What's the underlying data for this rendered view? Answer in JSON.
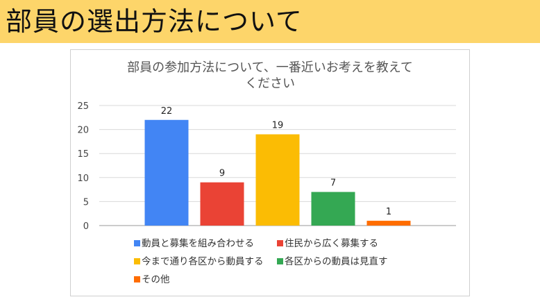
{
  "page": {
    "title": "部員の選出方法について"
  },
  "chart_data": {
    "type": "bar",
    "title_lines": [
      "部員の参加方法について、一番近いお考えを教えて",
      "ください"
    ],
    "categories": [
      "動員と募集を組み合わせる",
      "住民から広く募集する",
      "今まで通り各区から動員する",
      "各区からの動員は見直す",
      "その他"
    ],
    "values": [
      22,
      9,
      19,
      7,
      1
    ],
    "colors": [
      "#4285f4",
      "#ea4335",
      "#fbbc04",
      "#34a853",
      "#ff6d01"
    ],
    "ylim": [
      0,
      25
    ],
    "yticks": [
      0,
      5,
      10,
      15,
      20,
      25
    ],
    "grid": true,
    "legend_position": "bottom"
  }
}
